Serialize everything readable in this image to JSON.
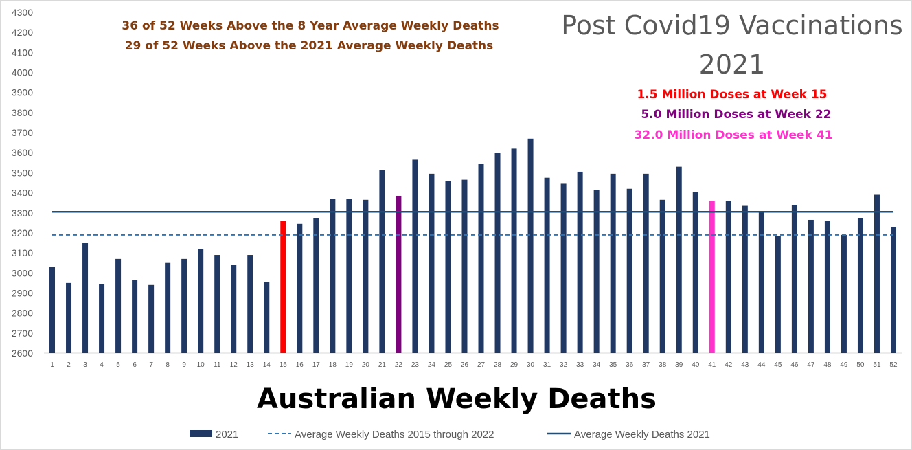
{
  "chart_data": {
    "type": "bar",
    "title": "Post Covid19 Vaccinations 2021",
    "title_lines": [
      "Post Covid19 Vaccinations",
      "2021"
    ],
    "xlabel": "Australian Weekly Deaths",
    "ylabel": "",
    "ylim": [
      2600,
      4300
    ],
    "yticks": [
      2600,
      2700,
      2800,
      2900,
      3000,
      3100,
      3200,
      3300,
      3400,
      3500,
      3600,
      3700,
      3800,
      3900,
      4000,
      4100,
      4200,
      4300
    ],
    "categories": [
      "1",
      "2",
      "3",
      "4",
      "5",
      "6",
      "7",
      "8",
      "9",
      "10",
      "11",
      "12",
      "13",
      "14",
      "15",
      "16",
      "17",
      "18",
      "19",
      "20",
      "21",
      "22",
      "23",
      "24",
      "25",
      "26",
      "27",
      "28",
      "29",
      "30",
      "31",
      "32",
      "33",
      "34",
      "35",
      "36",
      "37",
      "38",
      "39",
      "40",
      "41",
      "42",
      "43",
      "44",
      "45",
      "46",
      "47",
      "48",
      "49",
      "50",
      "51",
      "52"
    ],
    "series": [
      {
        "name": "2021",
        "type": "bar",
        "color": "#203864",
        "values": [
          3030,
          2950,
          3150,
          2945,
          3070,
          2965,
          2940,
          3050,
          3070,
          3120,
          3090,
          3040,
          3090,
          2955,
          3260,
          3245,
          3275,
          3370,
          3370,
          3365,
          3515,
          3385,
          3565,
          3495,
          3460,
          3465,
          3545,
          3600,
          3620,
          3670,
          3475,
          3445,
          3505,
          3415,
          3495,
          3420,
          3495,
          3365,
          3530,
          3405,
          3360,
          3360,
          3335,
          3305,
          3185,
          3340,
          3265,
          3260,
          3190,
          3275,
          3390,
          3230
        ]
      },
      {
        "name": "Average Weekly Deaths 2015 through 2022",
        "type": "line",
        "style": "dashed",
        "color": "#2E75B6",
        "value": 3190
      },
      {
        "name": "Average Weekly Deaths 2021",
        "type": "line",
        "style": "solid",
        "color": "#1F4E79",
        "value": 3305
      }
    ],
    "highlighted_bars": [
      {
        "week": "15",
        "color": "#FF0000"
      },
      {
        "week": "22",
        "color": "#800080"
      },
      {
        "week": "41",
        "color": "#FF33CC"
      }
    ],
    "annotations": [
      {
        "text": "36 of 52 Weeks Above the 8 Year Average Weekly Deaths",
        "color": "#843C0C"
      },
      {
        "text": "29 of 52 Weeks Above the 2021 Average Weekly Deaths",
        "color": "#843C0C"
      },
      {
        "text": "1.5 Million Doses at Week 15",
        "color": "#FF0000"
      },
      {
        "text": "5.0 Million Doses at Week 22",
        "color": "#800080"
      },
      {
        "text": "32.0 Million Doses at Week 41",
        "color": "#FF33CC"
      }
    ],
    "grid": false,
    "legend": "bottom"
  }
}
